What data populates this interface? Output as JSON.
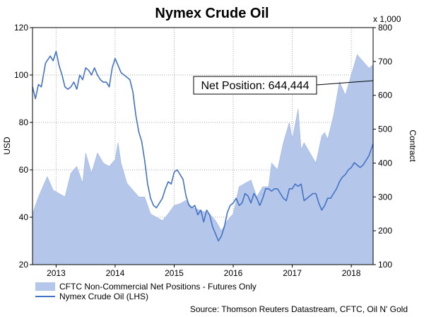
{
  "chart_data": {
    "type": "line",
    "title": "Nymex Crude Oil",
    "ylabel_left": "USD",
    "ylabel_right": "Contract",
    "right_axis_multiplier": "x 1,000",
    "xlim": [
      2012.6,
      2018.37
    ],
    "ylim_left": [
      20,
      120
    ],
    "ylim_right": [
      100,
      800
    ],
    "left_ticks": [
      "20",
      "40",
      "60",
      "80",
      "100",
      "120"
    ],
    "right_ticks": [
      "100",
      "200",
      "300",
      "400",
      "500",
      "600",
      "700",
      "800"
    ],
    "x_ticks": [
      {
        "label": "2013",
        "x": 2013.0
      },
      {
        "label": "2014",
        "x": 2014.0
      },
      {
        "label": "2015",
        "x": 2015.0
      },
      {
        "label": "2016",
        "x": 2016.0
      },
      {
        "label": "2017",
        "x": 2017.0
      },
      {
        "label": "2018",
        "x": 2018.0
      }
    ],
    "grid": true,
    "legend_placement": "bottom-left",
    "annotation": "Net Position: 644,444",
    "source": "Source: Thomson Reuters Datastream, CFTC, Oil N' Gold",
    "series": [
      {
        "name": "CFTC Non-Commercial Net Positions - Futures Only",
        "kind": "area",
        "axis": "right",
        "color": "#b4c7ea",
        "x": [
          2012.6,
          2012.7,
          2012.85,
          2012.95,
          2013.05,
          2013.15,
          2013.25,
          2013.35,
          2013.45,
          2013.5,
          2013.6,
          2013.7,
          2013.8,
          2013.9,
          2014.0,
          2014.05,
          2014.1,
          2014.2,
          2014.3,
          2014.4,
          2014.5,
          2014.6,
          2014.7,
          2014.8,
          2014.9,
          2015.0,
          2015.1,
          2015.2,
          2015.3,
          2015.45,
          2015.6,
          2015.7,
          2015.8,
          2015.9,
          2016.0,
          2016.1,
          2016.2,
          2016.3,
          2016.4,
          2016.5,
          2016.6,
          2016.65,
          2016.75,
          2016.85,
          2016.95,
          2017.0,
          2017.1,
          2017.15,
          2017.2,
          2017.3,
          2017.4,
          2017.5,
          2017.55,
          2017.6,
          2017.7,
          2017.8,
          2017.9,
          2018.0,
          2018.05,
          2018.1,
          2018.15,
          2018.2,
          2018.3,
          2018.37
        ],
        "values": [
          250,
          300,
          360,
          320,
          310,
          300,
          370,
          390,
          340,
          430,
          370,
          430,
          400,
          390,
          410,
          460,
          400,
          340,
          320,
          300,
          300,
          250,
          240,
          230,
          250,
          275,
          280,
          290,
          270,
          260,
          250,
          230,
          200,
          230,
          250,
          330,
          340,
          350,
          300,
          330,
          330,
          400,
          380,
          460,
          520,
          470,
          560,
          440,
          460,
          430,
          400,
          480,
          490,
          470,
          540,
          640,
          600,
          660,
          690,
          720,
          710,
          700,
          680,
          690
        ]
      },
      {
        "name": "Nymex Crude Oil (LHS)",
        "kind": "line",
        "axis": "left",
        "color": "#4472c4",
        "x": [
          2012.6,
          2012.65,
          2012.7,
          2012.75,
          2012.82,
          2012.9,
          2012.95,
          2013.0,
          2013.05,
          2013.1,
          2013.15,
          2013.2,
          2013.25,
          2013.3,
          2013.35,
          2013.4,
          2013.45,
          2013.5,
          2013.55,
          2013.6,
          2013.65,
          2013.7,
          2013.75,
          2013.8,
          2013.85,
          2013.9,
          2013.95,
          2014.0,
          2014.05,
          2014.1,
          2014.15,
          2014.2,
          2014.25,
          2014.3,
          2014.35,
          2014.4,
          2014.45,
          2014.5,
          2014.55,
          2014.6,
          2014.65,
          2014.7,
          2014.75,
          2014.8,
          2014.85,
          2014.9,
          2014.95,
          2015.0,
          2015.05,
          2015.1,
          2015.15,
          2015.2,
          2015.25,
          2015.3,
          2015.35,
          2015.4,
          2015.45,
          2015.5,
          2015.55,
          2015.6,
          2015.65,
          2015.7,
          2015.75,
          2015.8,
          2015.85,
          2015.9,
          2015.95,
          2016.0,
          2016.05,
          2016.1,
          2016.15,
          2016.2,
          2016.25,
          2016.3,
          2016.35,
          2016.4,
          2016.45,
          2016.5,
          2016.55,
          2016.6,
          2016.65,
          2016.7,
          2016.75,
          2016.8,
          2016.85,
          2016.9,
          2016.95,
          2017.0,
          2017.05,
          2017.1,
          2017.15,
          2017.2,
          2017.25,
          2017.3,
          2017.35,
          2017.4,
          2017.45,
          2017.5,
          2017.55,
          2017.6,
          2017.65,
          2017.7,
          2017.75,
          2017.8,
          2017.85,
          2017.9,
          2017.95,
          2018.0,
          2018.05,
          2018.1,
          2018.15,
          2018.2,
          2018.25,
          2018.3,
          2018.37
        ],
        "values": [
          95,
          90,
          96,
          95,
          105,
          108,
          106,
          110,
          104,
          100,
          95,
          94,
          95,
          97,
          94,
          100,
          98,
          103,
          102,
          100,
          103,
          100,
          98,
          97,
          97,
          95,
          103,
          107,
          104,
          101,
          100,
          99,
          98,
          93,
          83,
          76,
          72,
          64,
          54,
          48,
          45,
          44,
          46,
          48,
          52,
          55,
          54,
          59,
          60,
          58,
          56,
          49,
          45,
          44,
          45,
          41,
          43,
          38,
          43,
          41,
          36,
          33,
          30,
          32,
          36,
          42,
          45,
          46,
          48,
          45,
          46,
          50,
          49,
          46,
          50,
          48,
          45,
          48,
          52,
          52,
          51,
          52,
          52,
          50,
          48,
          47,
          52,
          52,
          54,
          53,
          54,
          47,
          48,
          49,
          50,
          50,
          46,
          43,
          45,
          48,
          48,
          50,
          52,
          55,
          57,
          58,
          60,
          61,
          63,
          62,
          61,
          62,
          64,
          66,
          71
        ]
      }
    ]
  }
}
